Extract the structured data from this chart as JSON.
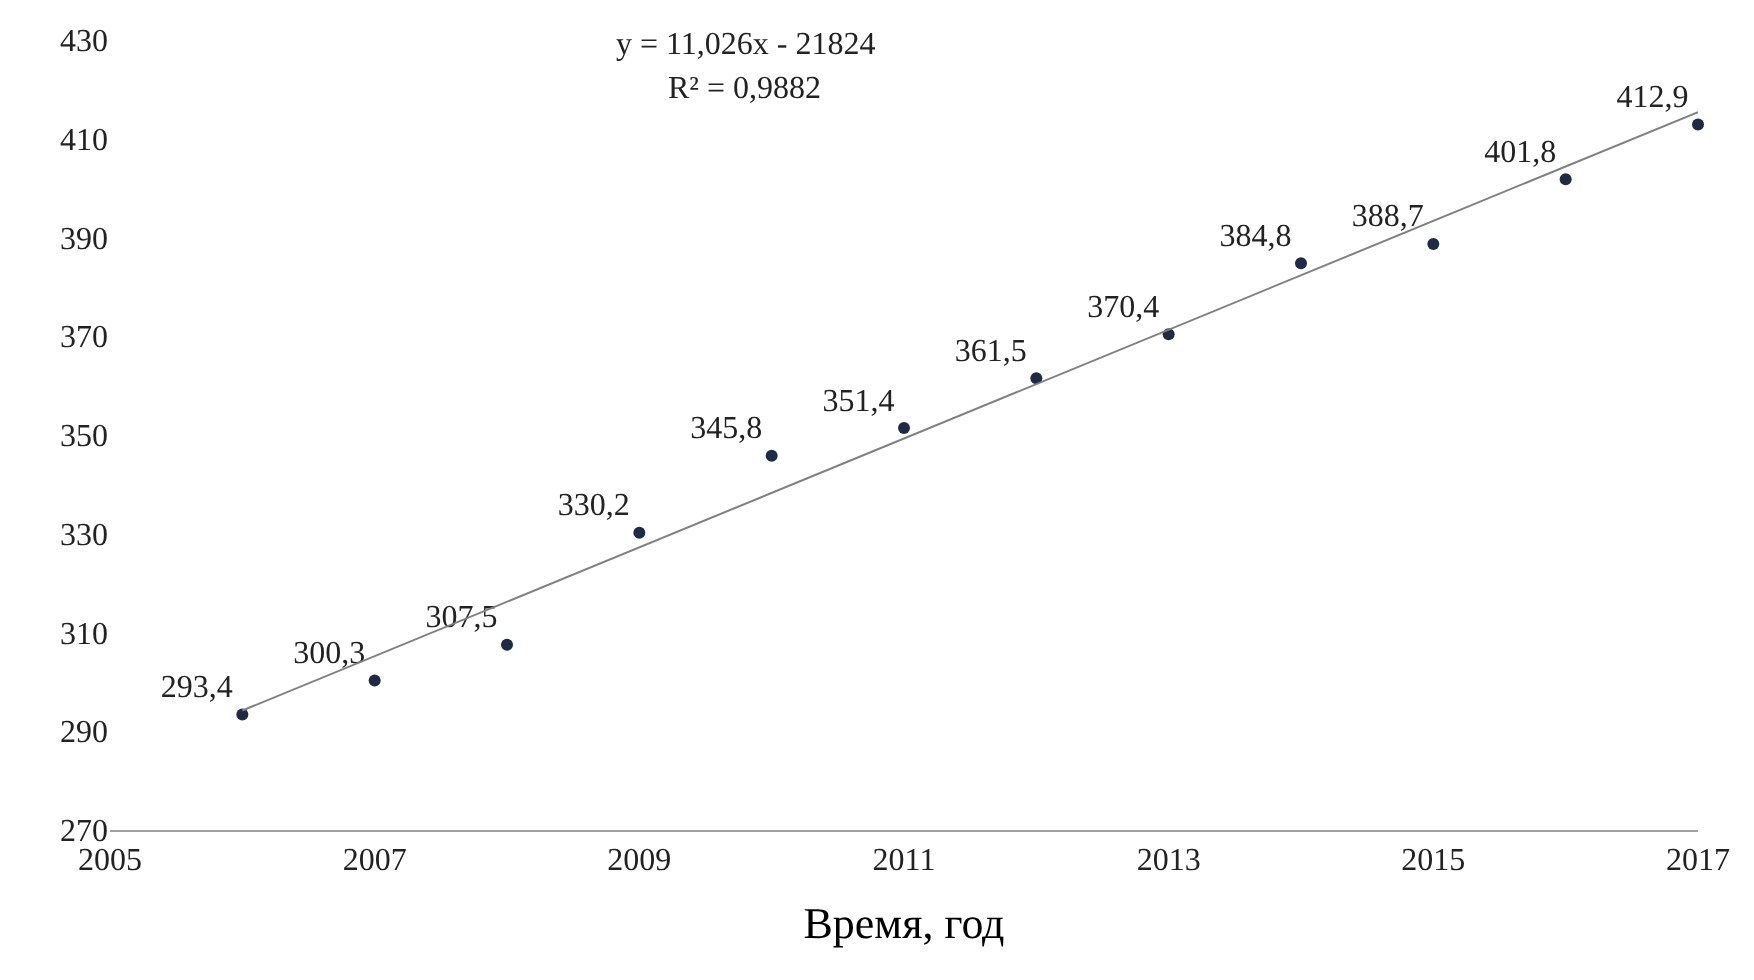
{
  "chart_data": {
    "type": "scatter",
    "xlabel": "Время, год",
    "x": [
      2006,
      2007,
      2008,
      2009,
      2010,
      2011,
      2012,
      2013,
      2014,
      2015,
      2016,
      2017
    ],
    "series": [
      {
        "color": "#1f2a44",
        "values": [
          293.4,
          300.3,
          307.5,
          330.2,
          345.8,
          351.4,
          361.5,
          370.4,
          384.8,
          388.7,
          401.8,
          412.9
        ],
        "value_labels": [
          "293,4",
          "300,3",
          "307,5",
          "330,2",
          "345,8",
          "351,4",
          "361,5",
          "370,4",
          "384,8",
          "388,7",
          "401,8",
          "412,9"
        ],
        "marker": "circle"
      },
      {
        "type": "line",
        "color": "#808080",
        "x": [
          2006,
          2017
        ],
        "values": [
          294.2,
          415.4
        ],
        "line_style": "solid"
      }
    ],
    "annotations": [
      "y = 11,026x - 21824",
      "R² = 0,9882"
    ],
    "xlim": [
      2005,
      2017
    ],
    "xticks": [
      2005,
      2007,
      2009,
      2011,
      2013,
      2015,
      2017
    ],
    "ylim": [
      270,
      430
    ],
    "yticks": [
      270,
      290,
      310,
      330,
      350,
      370,
      390,
      410,
      430
    ],
    "grid": false
  }
}
